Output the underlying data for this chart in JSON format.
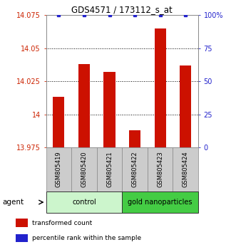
{
  "title": "GDS4571 / 173112_s_at",
  "samples": [
    "GSM805419",
    "GSM805420",
    "GSM805421",
    "GSM805422",
    "GSM805423",
    "GSM805424"
  ],
  "red_values": [
    14.013,
    14.038,
    14.032,
    13.988,
    14.065,
    14.037
  ],
  "blue_values": [
    100,
    100,
    100,
    100,
    100,
    100
  ],
  "ylim_left": [
    13.975,
    14.075
  ],
  "ylim_right": [
    0,
    100
  ],
  "yticks_left": [
    13.975,
    14.0,
    14.025,
    14.05,
    14.075
  ],
  "yticks_right": [
    0,
    25,
    50,
    75,
    100
  ],
  "ytick_labels_left": [
    "13.975",
    "14",
    "14.025",
    "14.05",
    "14.075"
  ],
  "ytick_labels_right": [
    "0",
    "25",
    "50",
    "75",
    "100%"
  ],
  "groups": [
    {
      "label": "control",
      "indices": [
        0,
        1,
        2
      ],
      "color": "#ccf5cc"
    },
    {
      "label": "gold nanoparticles",
      "indices": [
        3,
        4,
        5
      ],
      "color": "#44cc44"
    }
  ],
  "group_row_label": "agent",
  "bar_color": "#cc1100",
  "dot_color": "#2222cc",
  "grid_color": "#000000",
  "tick_label_color_left": "#cc2200",
  "tick_label_color_right": "#2222cc",
  "legend": [
    {
      "color": "#cc1100",
      "label": "transformed count"
    },
    {
      "color": "#2222cc",
      "label": "percentile rank within the sample"
    }
  ],
  "sample_bg_color": "#cccccc",
  "sample_border_color": "#888888"
}
